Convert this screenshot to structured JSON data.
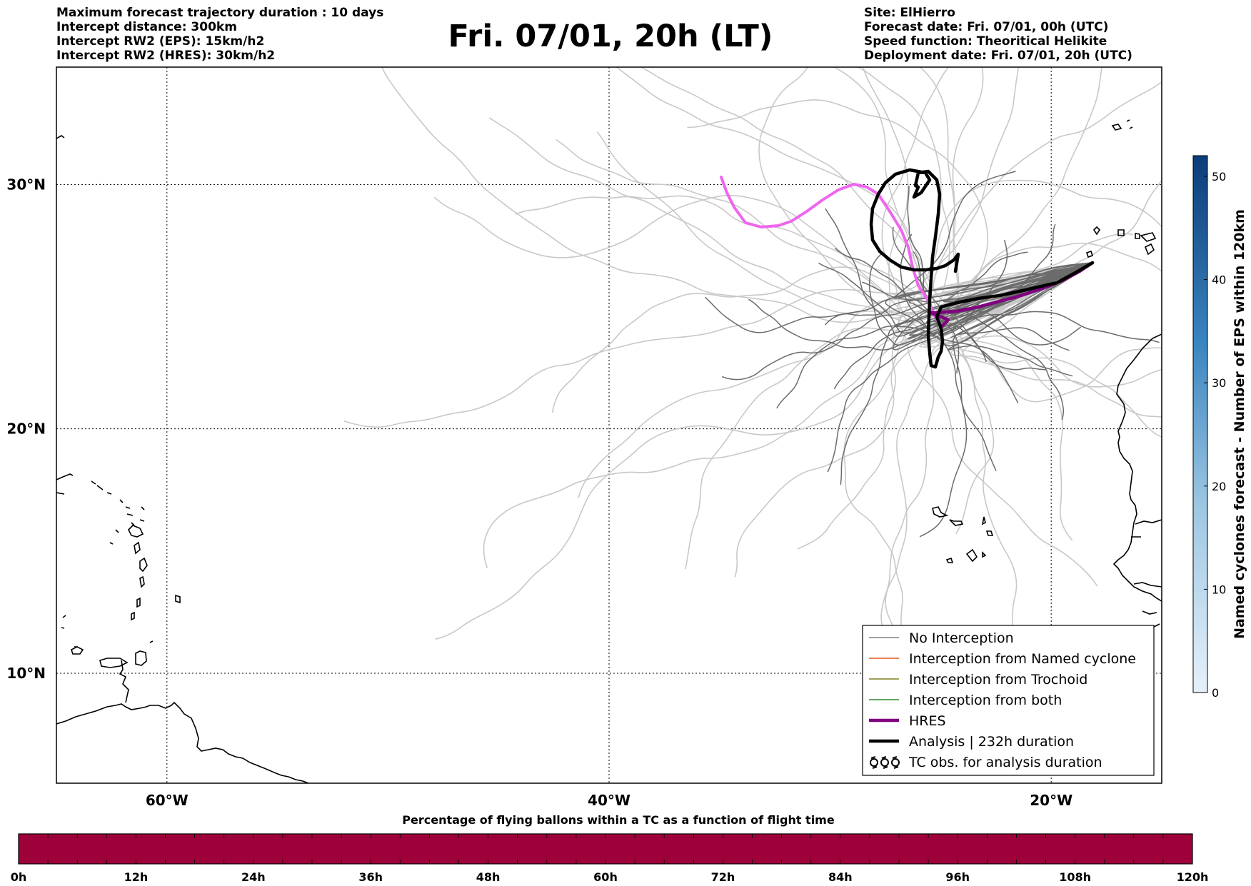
{
  "header": {
    "left": [
      "Maximum forecast trajectory duration : 10 days",
      "Intercept distance: 300km",
      "Intercept RW2 (EPS):  15km/h2",
      "Intercept RW2 (HRES): 30km/h2"
    ],
    "title": "Fri. 07/01, 20h (LT)",
    "right": [
      "Site: ElHierro",
      "Forecast date: Fri. 07/01, 00h (UTC)",
      "Speed function: Theoritical Helikite",
      "Deployment date: Fri. 07/01, 20h (UTC)"
    ]
  },
  "map": {
    "extent": {
      "lon": [
        -65,
        -15
      ],
      "lat": [
        5.5,
        34.8
      ]
    },
    "lat_grid": [
      10,
      20,
      30
    ],
    "lon_grid": [
      -60,
      -40,
      -20
    ],
    "lat_labels": [
      "10°N",
      "20°N",
      "30°N"
    ],
    "lon_labels": [
      "60°W",
      "40°W",
      "20°W"
    ]
  },
  "legend": {
    "items": [
      {
        "label": "No Interception",
        "color": "#808080",
        "style": "thin"
      },
      {
        "label": "Interception from Named cyclone",
        "color": "#e8561e",
        "style": "thin"
      },
      {
        "label": "Interception from Trochoid",
        "color": "#808020",
        "style": "thin"
      },
      {
        "label": "Interception from both",
        "color": "#2a8a2a",
        "style": "thin"
      },
      {
        "label": "HRES",
        "color": "#800080",
        "style": "thick"
      },
      {
        "label": "Analysis | 232h duration",
        "color": "#000000",
        "style": "thick"
      },
      {
        "label": "TC obs. for analysis duration",
        "color": "#000000",
        "style": "tc-symbol"
      }
    ]
  },
  "colorbar": {
    "title": "Named cyclones forecast - Number of EPS within 120km",
    "ticks": [
      "0",
      "10",
      "20",
      "30",
      "40",
      "50"
    ],
    "tick_values": [
      0,
      10,
      20,
      30,
      40,
      50
    ],
    "max": 52,
    "color_low": "#e2eef9",
    "color_high": "#0b3c7a"
  },
  "timebar": {
    "title": "Percentage of flying ballons within a TC as a function of flight time",
    "ticks": [
      "0h",
      "12h",
      "24h",
      "36h",
      "48h",
      "60h",
      "72h",
      "84h",
      "96h",
      "108h",
      "120h"
    ],
    "tick_hours": [
      0,
      12,
      24,
      36,
      48,
      60,
      72,
      84,
      96,
      108,
      120
    ],
    "fill_color": "#9e003a"
  },
  "colors": {
    "eps_light": "#c8c8c8",
    "eps_dark": "#6b6b6b",
    "hres": "#800080",
    "hres_early": "#ee66ee",
    "analysis": "#000000"
  }
}
